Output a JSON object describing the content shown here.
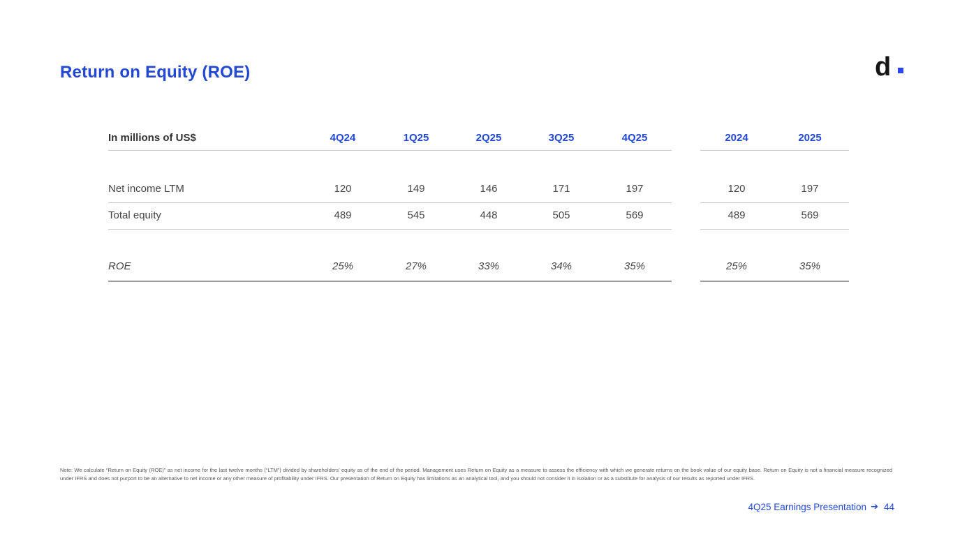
{
  "slide": {
    "title": "Return on Equity (ROE)",
    "logo_letter": "d"
  },
  "table": {
    "unit_label": "In millions of US$",
    "quarters": [
      "4Q24",
      "1Q25",
      "2Q25",
      "3Q25",
      "4Q25"
    ],
    "years": [
      "2024",
      "2025"
    ],
    "rows": [
      {
        "label": "Net income LTM",
        "q": [
          "120",
          "149",
          "146",
          "171",
          "197"
        ],
        "y": [
          "120",
          "197"
        ]
      },
      {
        "label": "Total equity",
        "q": [
          "489",
          "545",
          "448",
          "505",
          "569"
        ],
        "y": [
          "489",
          "569"
        ]
      }
    ],
    "roe": {
      "label": "ROE",
      "q": [
        "25%",
        "27%",
        "33%",
        "34%",
        "35%"
      ],
      "y": [
        "25%",
        "35%"
      ]
    }
  },
  "note": "Note: We calculate “Return on Equity (ROE)” as net income for the last twelve months (“LTM”) divided by shareholders’ equity as of the end of the period. Management uses Return on Equity as a measure to assess the efficiency with which we generate returns on the book value of our equity base. Return on Equity is not a financial measure recognized under IFRS and does not purport to be an alternative to net income or any other measure of profitability under IFRS. Our presentation of Return on Equity has limitations as an analytical tool, and you should not consider it in isolation or as a substitute for analysis of our results as reported under IFRS.",
  "footer": {
    "label": "4Q25 Earnings Presentation",
    "arrow": "➔",
    "page": "44"
  },
  "colors": {
    "accent_blue": "#2348d4",
    "logo_dot_blue": "#2b46f0",
    "body_text": "#484848",
    "rule_light": "#c7c7c7",
    "rule_dark": "#9e9e9e"
  }
}
